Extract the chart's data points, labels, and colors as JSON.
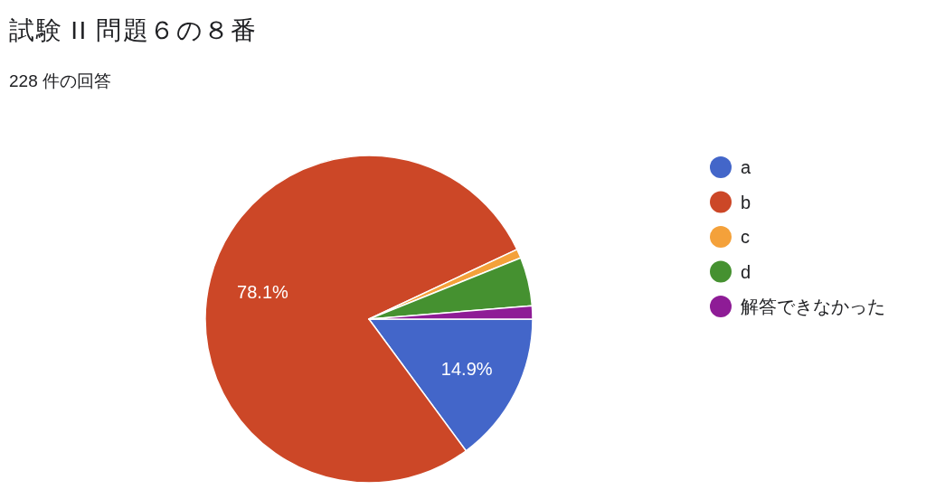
{
  "chart_data": {
    "type": "pie",
    "title": "試験 II 問題６の８番",
    "subtitle": "228 件の回答",
    "categories": [
      "a",
      "b",
      "c",
      "d",
      "解答できなかった"
    ],
    "values": [
      14.9,
      78.1,
      0.9,
      4.8,
      1.3
    ],
    "colors": [
      "#4366c9",
      "#cc4727",
      "#f4a13a",
      "#459130",
      "#8e1c96"
    ],
    "value_labels": [
      "14.9%",
      "78.1%",
      null,
      null,
      null
    ],
    "legend": "right"
  }
}
